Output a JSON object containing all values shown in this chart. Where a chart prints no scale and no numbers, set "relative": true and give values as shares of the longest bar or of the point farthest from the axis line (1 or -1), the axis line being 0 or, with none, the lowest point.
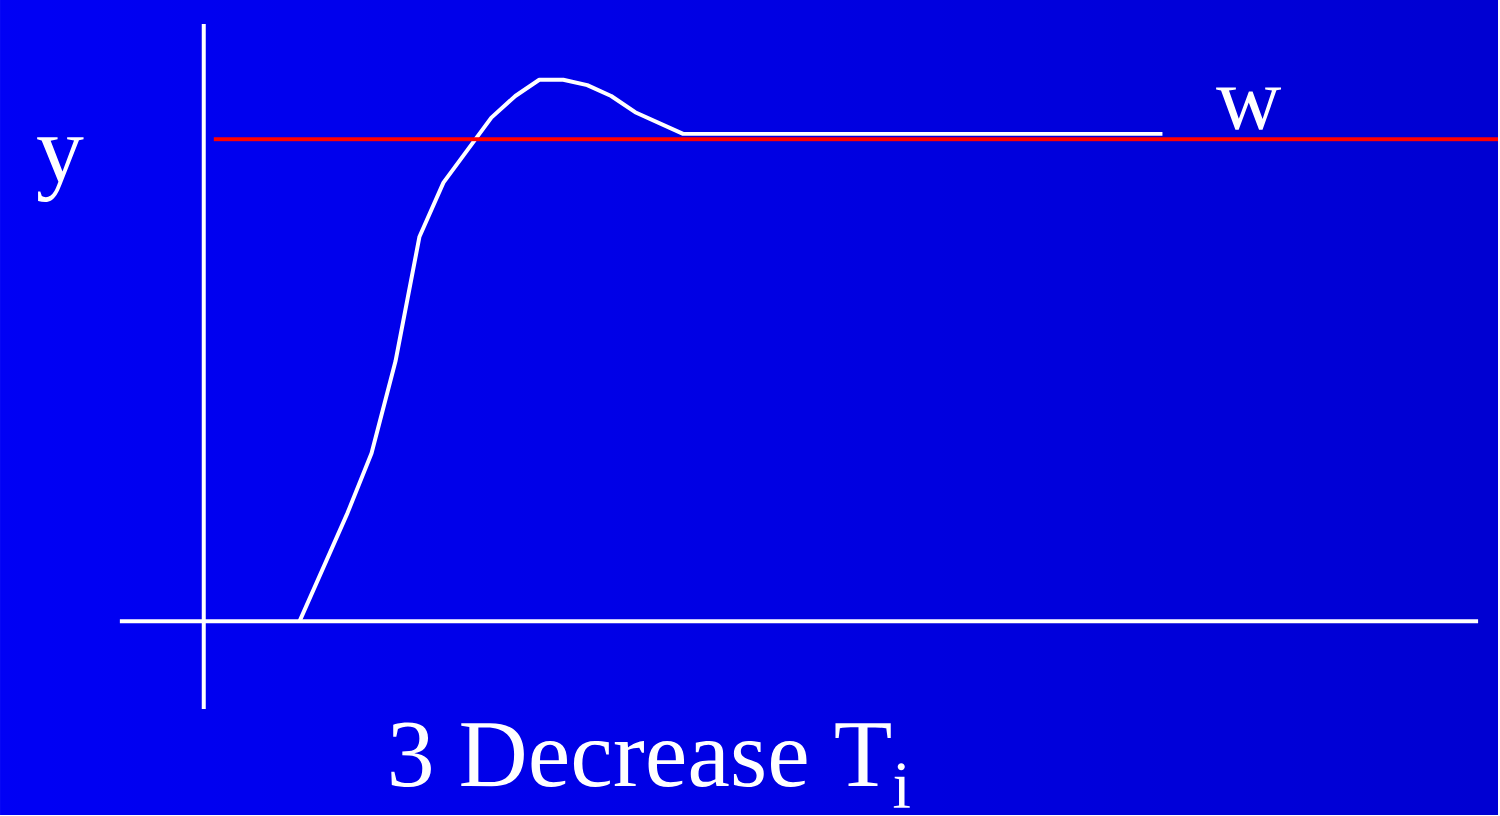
{
  "chart_data": {
    "type": "line",
    "relative": true,
    "xlabel": "3 Decrease T$_{i}$",
    "ylabel": "y",
    "categories": [
      null,
      null,
      null,
      null,
      null,
      null,
      null,
      null,
      null,
      null,
      null,
      null,
      null,
      null,
      null,
      null,
      null,
      null,
      null,
      null,
      null,
      null,
      null,
      null,
      null,
      null,
      null,
      null,
      null,
      null,
      null,
      null,
      null,
      null,
      null,
      null,
      null
    ],
    "series": [
      {
        "color": "#ffffff",
        "values": [
          0,
          0.1,
          0.2,
          0.31,
          0.48,
          0.71,
          0.81,
          0.87,
          0.93,
          0.97,
          1.0,
          1.0,
          0.99,
          0.97,
          0.94,
          0.92,
          0.9,
          0.9,
          0.9,
          0.9,
          0.9,
          0.9,
          0.9,
          0.9,
          0.9,
          0.9,
          0.9,
          0.9,
          0.9,
          0.9,
          0.9,
          0.9,
          0.9,
          0.9,
          0.9,
          0.9,
          0.9
        ]
      }
    ],
    "ref_lines": [
      {
        "axis": "y",
        "value": 0.89,
        "label": "w",
        "color": "#ff0000"
      }
    ],
    "marker": "none",
    "line_style": "solid"
  }
}
